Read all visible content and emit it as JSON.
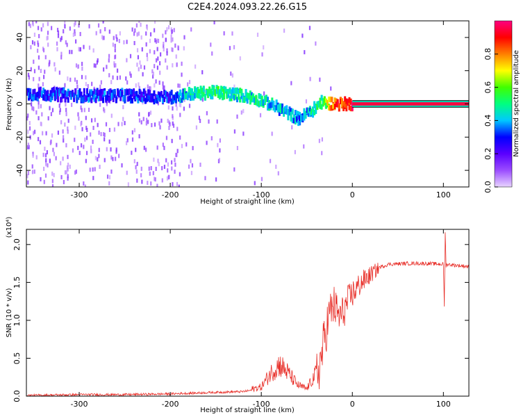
{
  "title": "C2E4.2024.093.22.26.G15",
  "chart_data": [
    {
      "type": "heatmap",
      "xlabel": "Height of straight line (km)",
      "ylabel": "Frequency (Hz)",
      "xlim": [
        -358,
        128
      ],
      "ylim": [
        -50,
        50
      ],
      "xticks": [
        -300,
        -200,
        -100,
        0,
        100
      ],
      "yticks": [
        -40,
        -20,
        0,
        20,
        40
      ],
      "colorbar": {
        "label": "Normalized spectral amplitude",
        "range": [
          0,
          1
        ],
        "ticks": [
          "0.0",
          "0.2",
          "0.4",
          "0.6",
          "0.8"
        ],
        "colors": [
          "#e8d4ff",
          "#9b4dff",
          "#5a00ff",
          "#0000ff",
          "#00c8ff",
          "#00ff80",
          "#40ff00",
          "#ffff00",
          "#ff8000",
          "#ff0000",
          "#ff0080"
        ]
      },
      "dominant_frequency_track": {
        "x": [
          -350,
          -300,
          -250,
          -200,
          -180,
          -150,
          -120,
          -100,
          -80,
          -60,
          -45,
          -35,
          -20,
          0,
          50,
          100,
          128
        ],
        "y": [
          6,
          5,
          5,
          4,
          6,
          7,
          5,
          2,
          -3,
          -9,
          -4,
          1,
          0,
          0,
          0,
          0,
          0
        ],
        "amplitude": [
          0.3,
          0.3,
          0.3,
          0.3,
          0.45,
          0.5,
          0.45,
          0.45,
          0.4,
          0.35,
          0.45,
          0.5,
          0.85,
          0.9,
          0.92,
          0.92,
          0.92
        ]
      },
      "grid": false
    },
    {
      "type": "line",
      "xlabel": "Height of straight line (km)",
      "ylabel": "SNR (10 * v/v)",
      "y_multiplier": "(x10⁴)",
      "xlim": [
        -358,
        128
      ],
      "ylim": [
        0,
        2.2
      ],
      "xticks": [
        -300,
        -200,
        -100,
        0,
        100
      ],
      "yticks": [
        "0.0",
        "0.5",
        "1.0",
        "1.5",
        "2.0"
      ],
      "color": "#e8302a",
      "series": [
        {
          "x": [
            -358,
            -300,
            -250,
            -200,
            -150,
            -120,
            -100,
            -90,
            -80,
            -70,
            -60,
            -50,
            -40,
            -35,
            -30,
            -25,
            -20,
            -15,
            -10,
            -5,
            0,
            10,
            20,
            30,
            40,
            60,
            80,
            100,
            101,
            102,
            103,
            104,
            110,
            128
          ],
          "y": [
            0.01,
            0.02,
            0.02,
            0.03,
            0.05,
            0.06,
            0.1,
            0.25,
            0.35,
            0.25,
            0.12,
            0.08,
            0.25,
            0.45,
            0.8,
            1.1,
            1.2,
            1.05,
            1.1,
            1.25,
            1.35,
            1.5,
            1.6,
            1.7,
            1.74,
            1.75,
            1.75,
            1.74,
            1.2,
            2.15,
            1.72,
            1.74,
            1.73,
            1.71
          ]
        }
      ],
      "grid": false
    }
  ]
}
